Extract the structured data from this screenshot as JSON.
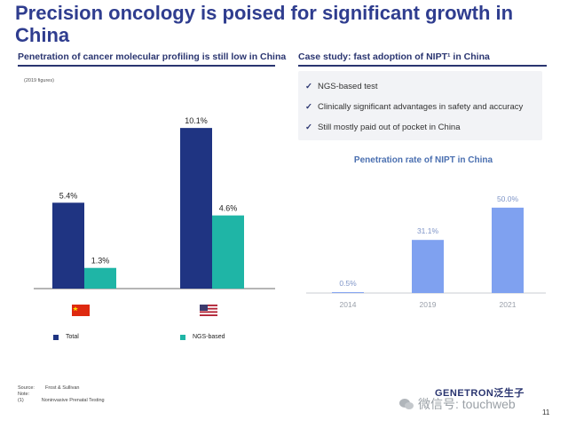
{
  "title": "Precision oncology is poised for significant growth in China",
  "left_section": {
    "heading": "Penetration of cancer molecular profiling is still low in China",
    "note": "(2019 figures)",
    "legend": [
      {
        "label": "Total",
        "color": "#1f3482"
      },
      {
        "label": "NGS-based",
        "color": "#1fb5a6"
      }
    ],
    "flags": [
      "china-flag-icon",
      "us-flag-icon"
    ]
  },
  "right_section": {
    "heading": "Case study: fast adoption of NIPT¹ in China",
    "checks": [
      "NGS-based test",
      "Clinically significant advantages in safety and accuracy",
      "Still mostly paid out of pocket in China"
    ],
    "check_icon": "check-icon"
  },
  "chart_data": [
    {
      "type": "bar",
      "title": "",
      "categories": [
        "China",
        "US"
      ],
      "series": [
        {
          "name": "Total",
          "values": [
            5.4,
            10.1
          ],
          "labels": [
            "5.4%",
            "10.1%"
          ],
          "color": "#1f3482"
        },
        {
          "name": "NGS-based",
          "values": [
            1.3,
            4.6
          ],
          "labels": [
            "1.3%",
            "4.6%"
          ],
          "color": "#1fb5a6"
        }
      ],
      "xlabel": "",
      "ylabel": "",
      "ylim": [
        0,
        11
      ]
    },
    {
      "type": "bar",
      "title": "Penetration rate of NIPT in China",
      "categories": [
        "2014",
        "2019",
        "2021"
      ],
      "values": [
        0.5,
        31.1,
        50.0
      ],
      "labels": [
        "0.5%",
        "31.1%",
        "50.0%"
      ],
      "color": "#7fa1f0",
      "xlabel": "",
      "ylabel": "",
      "ylim": [
        0,
        52
      ]
    }
  ],
  "footer": {
    "source_label": "Source:",
    "source_text": "Frost & Sullivan",
    "note_label": "Note:",
    "fn_label": "(1)",
    "fn_text": "Noninvasive Prenatal Testing"
  },
  "logo_text": "GENETRON泛生子",
  "watermark": "微信号: touchweb",
  "page_number": "11"
}
